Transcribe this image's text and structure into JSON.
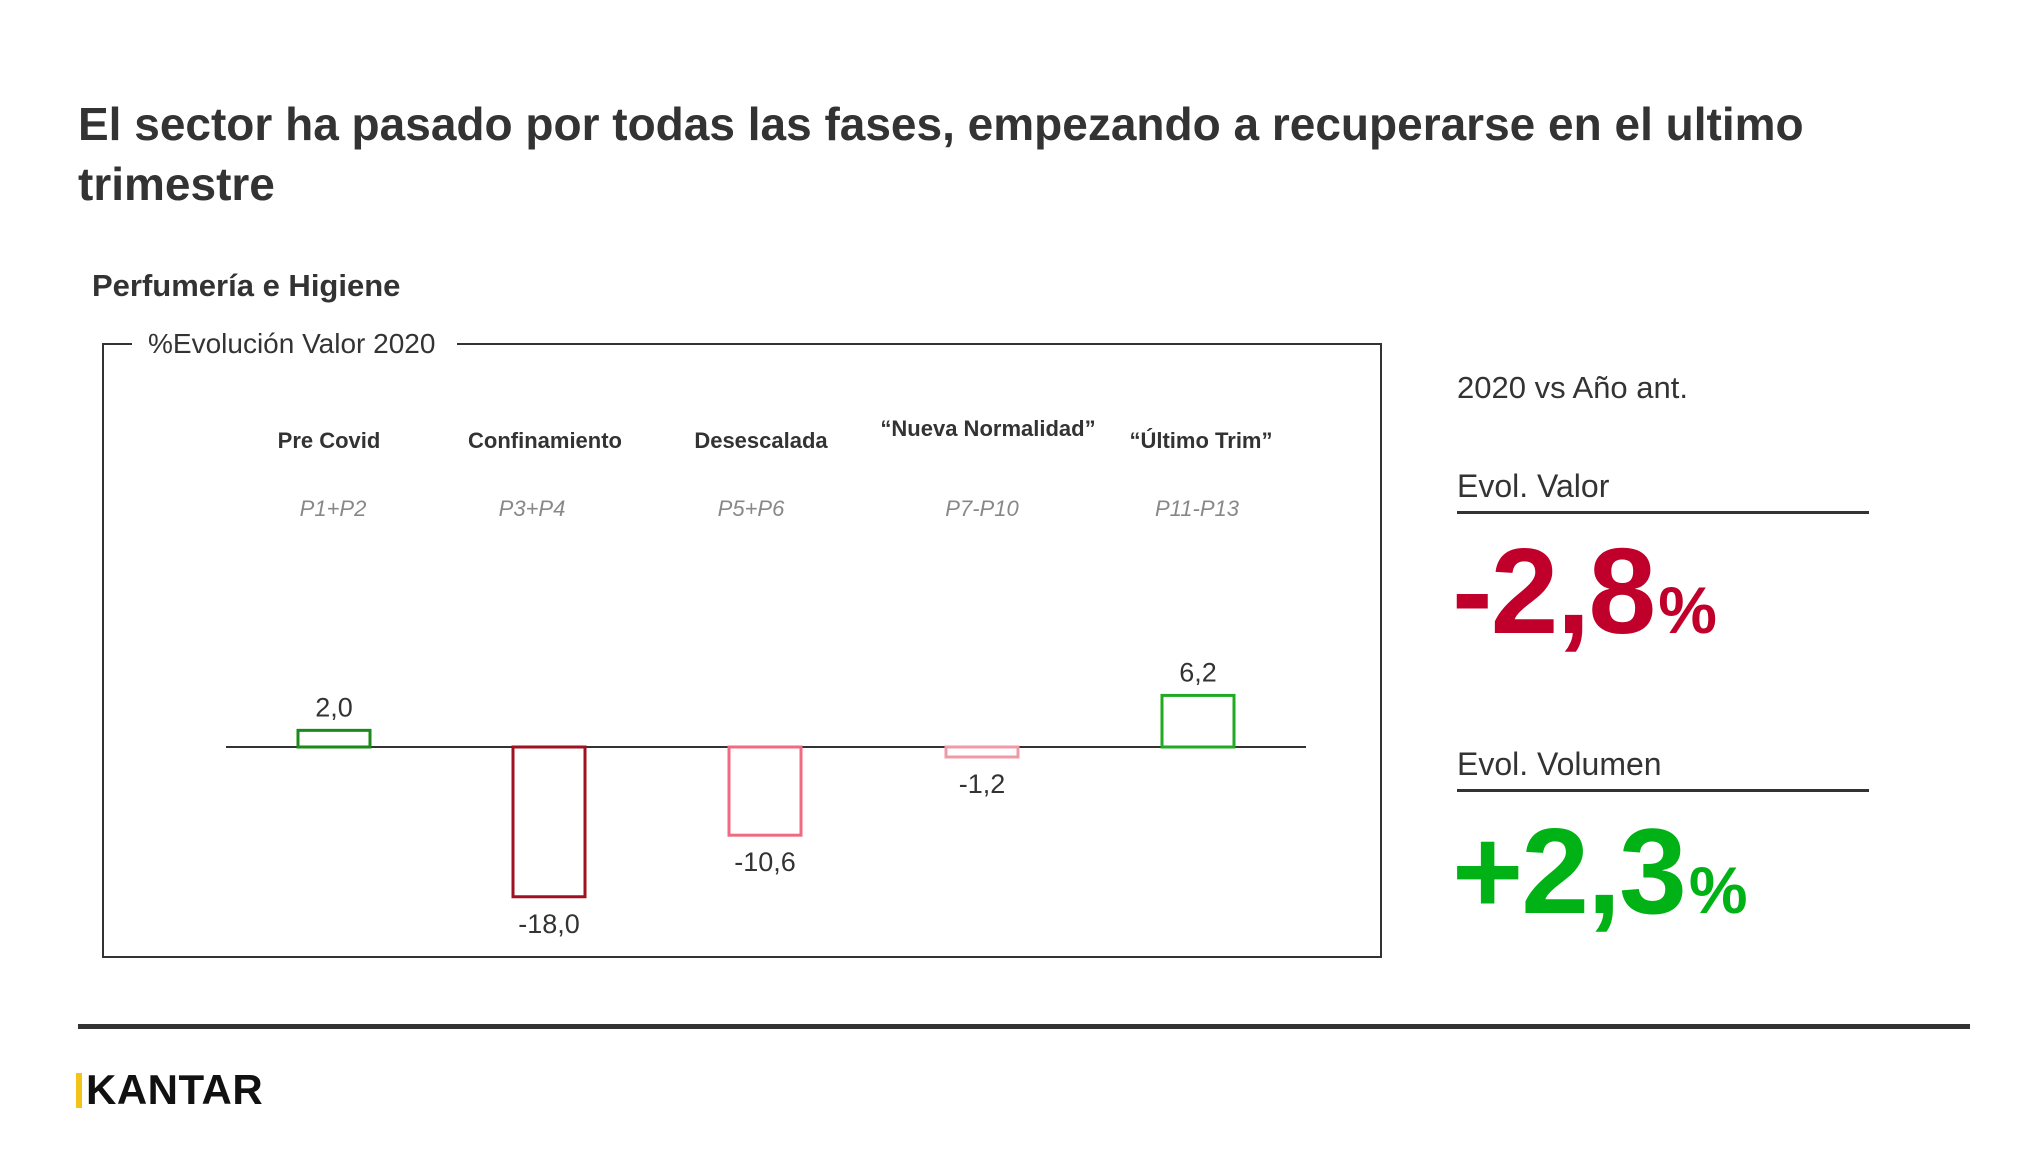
{
  "title": "El sector ha pasado por todas las fases, empezando a recuperarse en el ultimo trimestre",
  "subtitle": "Perfumería e Higiene",
  "box_label": "%Evolución Valor 2020",
  "side": {
    "header": "2020 vs Año ant.",
    "valor": {
      "label": "Evol. Valor",
      "value": "-2,8",
      "unit": "%",
      "color": "#c0002a"
    },
    "volumen": {
      "label": "Evol. Volumen",
      "value": "+2,3",
      "unit": "%",
      "color": "#00b215"
    }
  },
  "chart_data": {
    "type": "bar",
    "title": "",
    "xlabel": "",
    "ylabel": "",
    "categories": [
      "Pre Covid",
      "Confinamiento",
      "Desescalada",
      "“Nueva Normalidad”",
      "“Último Trim”"
    ],
    "periods": [
      "P1+P2",
      "P3+P4",
      "P5+P6",
      "P7-P10",
      "P11-P13"
    ],
    "values": [
      2.0,
      -18.0,
      -10.6,
      -1.2,
      6.2
    ],
    "labels": [
      "2,0",
      "-18,0",
      "-10,6",
      "-1,2",
      "6,2"
    ],
    "colors": [
      "#1a8a1a",
      "#a01020",
      "#f06a80",
      "#f09aa8",
      "#22aa22"
    ],
    "ylim": [
      -18,
      6.2
    ],
    "grid": false,
    "legend": "none"
  },
  "footer": {
    "logo": "KANTAR",
    "logo_accent_color": "#f2c318"
  }
}
